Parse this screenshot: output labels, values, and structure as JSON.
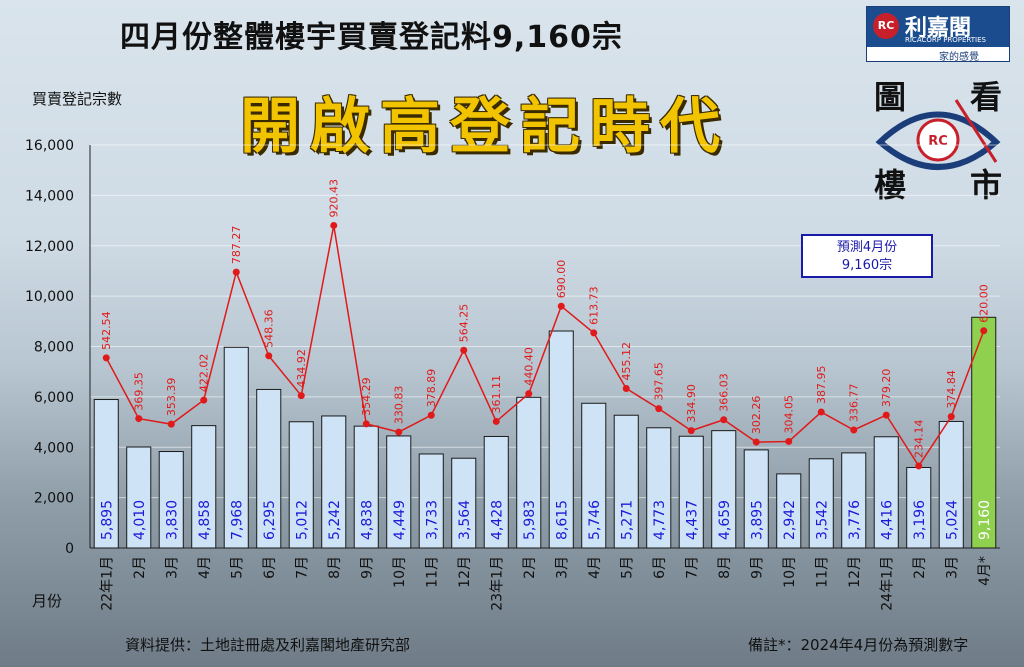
{
  "header": {
    "title": "四月份整體樓宇買賣登記料9,160宗",
    "subtitle": "開啟高登記時代"
  },
  "brand": {
    "name": "利嘉閣",
    "english": "RICACORP PROPERTIES",
    "slogan": "家的感覺",
    "seal": "RC",
    "eye_chars": [
      "圖",
      "看",
      "樓",
      "市"
    ]
  },
  "axes": {
    "y_title": "買賣登記宗數",
    "x_title": "月份"
  },
  "forecast_box": {
    "line1": "預測4月份",
    "line2": "9,160宗"
  },
  "footer": {
    "source": "資料提供：土地註冊處及利嘉閣地產研究部",
    "note": "備註*：2024年4月份為預測數字"
  },
  "colors": {
    "bar_fill": "#cfe3f7",
    "bar_stroke": "#1a1a1a",
    "forecast_bar": "#8fd14f",
    "line": "#e01a1a",
    "bar_label": "#1a1ad8",
    "title_yellow": "#f2c400"
  },
  "chart_data": {
    "type": "bar",
    "ylim": [
      0,
      16000
    ],
    "y_ticks": [
      "0",
      "2,000",
      "4,000",
      "6,000",
      "8,000",
      "10,000",
      "12,000",
      "14,000",
      "16,000"
    ],
    "y_tick_values": [
      0,
      2000,
      4000,
      6000,
      8000,
      10000,
      12000,
      14000,
      16000
    ],
    "categories": [
      "22年1月",
      "2月",
      "3月",
      "4月",
      "5月",
      "6月",
      "7月",
      "8月",
      "9月",
      "10月",
      "11月",
      "12月",
      "23年1月",
      "2月",
      "3月",
      "4月",
      "5月",
      "6月",
      "7月",
      "8月",
      "9月",
      "10月",
      "11月",
      "12月",
      "24年1月",
      "2月",
      "3月",
      "4月*"
    ],
    "series": [
      {
        "name": "",
        "type": "bar",
        "values": [
          5895,
          4010,
          3830,
          4858,
          7968,
          6295,
          5012,
          5242,
          4838,
          4449,
          3733,
          3564,
          4428,
          5983,
          8615,
          5746,
          5271,
          4773,
          4437,
          4659,
          3895,
          2942,
          3542,
          3776,
          4416,
          3196,
          5024,
          9160
        ],
        "labels": [
          "5,895",
          "4,010",
          "3,830",
          "4,858",
          "7,968",
          "6,295",
          "5,012",
          "5,242",
          "4,838",
          "4,449",
          "3,733",
          "3,564",
          "4,428",
          "5,983",
          "8,615",
          "5,746",
          "5,271",
          "4,773",
          "4,437",
          "4,659",
          "3,895",
          "2,942",
          "3,542",
          "3,776",
          "4,416",
          "3,196",
          "5,024",
          "9,160"
        ]
      },
      {
        "name": "",
        "type": "line",
        "values": [
          542.54,
          369.35,
          353.39,
          422.02,
          787.27,
          548.36,
          434.92,
          920.43,
          354.29,
          330.83,
          378.89,
          564.25,
          361.11,
          440.4,
          690.0,
          613.73,
          455.12,
          397.65,
          334.9,
          366.03,
          302.26,
          304.05,
          387.95,
          336.77,
          379.2,
          234.14,
          374.84,
          620.0
        ],
        "labels": [
          "542.54",
          "369.35",
          "353.39",
          "422.02",
          "787.27",
          "548.36",
          "434.92",
          "920.43",
          "354.29",
          "330.83",
          "378.89",
          "564.25",
          "361.11",
          "440.40",
          "690.00",
          "613.73",
          "455.12",
          "397.65",
          "334.90",
          "366.03",
          "302.26",
          "304.05",
          "387.95",
          "336.77",
          "379.20",
          "234.14",
          "374.84",
          "620.00"
        ]
      }
    ]
  }
}
